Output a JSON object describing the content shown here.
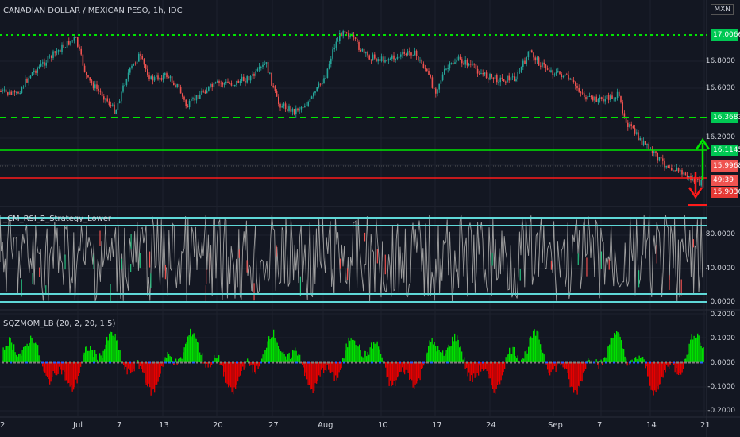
{
  "title": "CANADIAN DOLLAR / MEXICAN PESO, 1h, IDC",
  "currency": "MXN",
  "rsi_title": "_CM_RSI_2_Strategy_Lower",
  "sqz_title": "SQZMOM_LB (20, 2, 20, 1.5)",
  "price_axis": [
    "16.8000",
    "16.6000",
    "16.2000"
  ],
  "rsi_axis": [
    "80.0000",
    "40.0000",
    "0.0000"
  ],
  "sqz_axis": [
    "0.2000",
    "0.1000",
    "0.0000",
    "-0.1000",
    "-0.2000"
  ],
  "price_labels": [
    {
      "text": "17.0066",
      "color": "#00c853"
    },
    {
      "text": "16.3683",
      "color": "#00c853"
    },
    {
      "text": "16.1145",
      "color": "#00c853"
    },
    {
      "text": "15.9968",
      "color": "#ef5350"
    },
    {
      "text": "49:39",
      "color": "#ef5350"
    },
    {
      "text": "15.9036",
      "color": "#e53935"
    }
  ],
  "x_labels": [
    "2",
    "Jul",
    "7",
    "13",
    "20",
    "27",
    "Aug",
    "10",
    "17",
    "24",
    "Sep",
    "7",
    "14",
    "21"
  ],
  "colors": {
    "bg": "#131722",
    "up": "#26a69a",
    "down": "#ef5350",
    "level_green": "#00e600",
    "level_red": "#ff1a1a",
    "cyan": "#5fd8d8",
    "grey": "#a0a0a0",
    "sqz_pos": "#00e000",
    "sqz_neg": "#e60000"
  }
}
